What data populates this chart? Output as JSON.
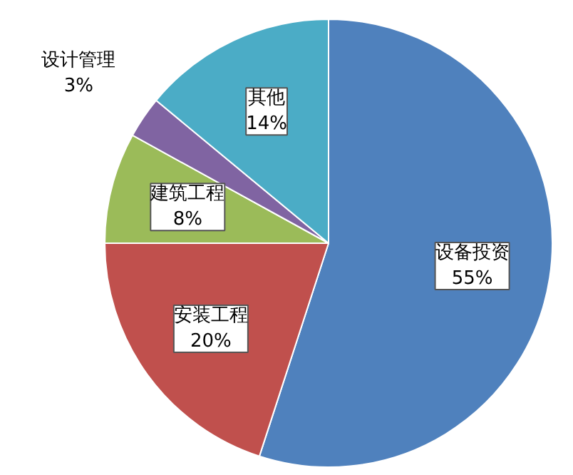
{
  "chart_data": {
    "type": "pie",
    "categories": [
      "设备投资",
      "安装工程",
      "建筑工程",
      "设计管理",
      "其他"
    ],
    "values": [
      55,
      20,
      8,
      3,
      14
    ],
    "value_labels": [
      "55%",
      "20%",
      "8%",
      "3%",
      "14%"
    ],
    "colors": [
      "#4f81bd",
      "#c0504d",
      "#9bbb59",
      "#8064a2",
      "#4bacc6"
    ],
    "legend": false
  }
}
